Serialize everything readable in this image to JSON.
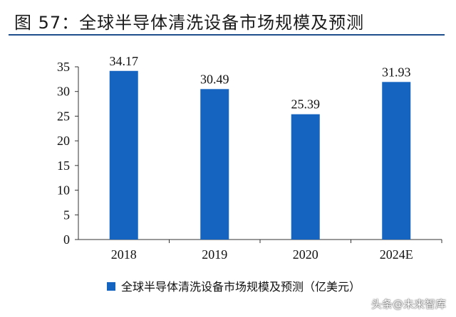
{
  "header": {
    "title": "图 57：全球半导体清洗设备市场规模及预测"
  },
  "chart_data": {
    "type": "bar",
    "categories": [
      "2018",
      "2019",
      "2020",
      "2024E"
    ],
    "series": [
      {
        "name": "全球半导体清洗设备市场规模及预测（亿美元）",
        "values": [
          34.17,
          30.49,
          25.39,
          31.93
        ]
      }
    ],
    "data_labels": [
      "34.17",
      "30.49",
      "25.39",
      "31.93"
    ],
    "yticks": [
      0,
      5,
      10,
      15,
      20,
      25,
      30,
      35
    ],
    "ylim": [
      0,
      35
    ],
    "grid": false,
    "legend_position": "bottom",
    "bar_color": "#1565c0"
  },
  "watermark": {
    "text": "头条@未来智库"
  }
}
